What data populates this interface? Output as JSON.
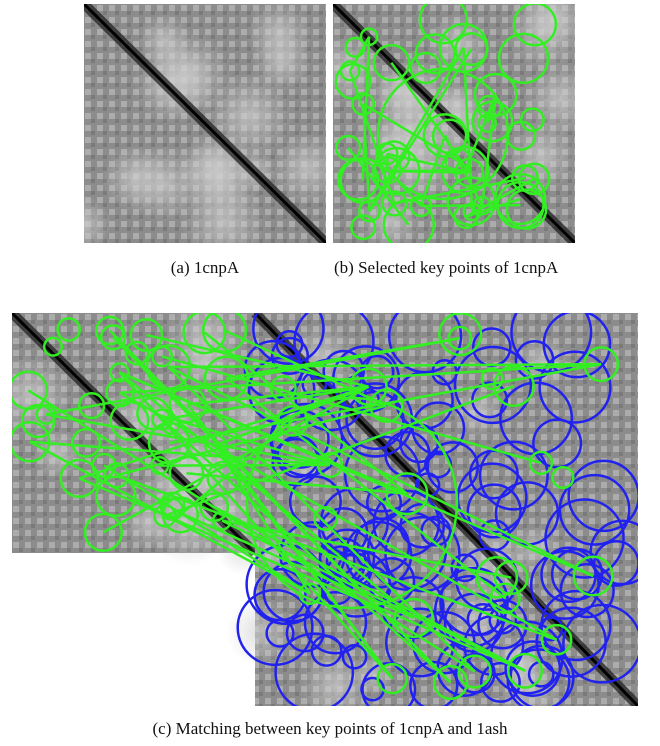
{
  "figure": {
    "panels": [
      {
        "caption": "(a) 1cnpA"
      },
      {
        "caption": "(b) Selected key points of 1cnpA"
      },
      {
        "caption": "(c) Matching between key points of 1cnpA and 1ash"
      }
    ]
  }
}
